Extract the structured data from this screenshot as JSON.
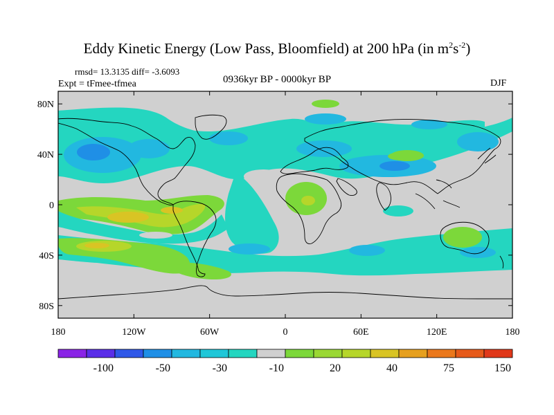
{
  "title": {
    "main": "Eddy Kinetic Energy (Low Pass, Bloomfield) at 200 hPa (in m",
    "sup1": "2",
    "mid": "s",
    "sup2": "-2",
    "end": ")"
  },
  "stats": "rmsd= 13.3135 diff= -3.6093",
  "expt": "Expt = tFmee-tfmea",
  "period": "0936kyr BP - 0000kyr BP",
  "season": "DJF",
  "axes": {
    "lat_ticks": [
      {
        "value": 80,
        "label": "80N"
      },
      {
        "value": 40,
        "label": "40N"
      },
      {
        "value": 0,
        "label": "0"
      },
      {
        "value": -40,
        "label": "40S"
      },
      {
        "value": -80,
        "label": "80S"
      }
    ],
    "lon_ticks": [
      {
        "value": -180,
        "label": "180"
      },
      {
        "value": -120,
        "label": "120W"
      },
      {
        "value": -60,
        "label": "60W"
      },
      {
        "value": 0,
        "label": "0"
      },
      {
        "value": 60,
        "label": "60E"
      },
      {
        "value": 120,
        "label": "120E"
      },
      {
        "value": 180,
        "label": "180"
      }
    ],
    "lon_range": [
      -180,
      180
    ],
    "lat_range": [
      -90,
      90
    ]
  },
  "colors": {
    "background": "#d0d0d0",
    "cyan": "#24d6c0",
    "light_blue": "#22b8e0",
    "blue": "#1f8fe6",
    "green": "#7cd83a",
    "yellow_green": "#b6d62a",
    "yellow": "#d9c424",
    "coastline": "#000000"
  },
  "colorbar": {
    "colors": [
      "#8a24e6",
      "#5a2ee8",
      "#2f58e8",
      "#1f8fe6",
      "#22b8e0",
      "#1fc7d8",
      "#24d6c0",
      "#d0d0d0",
      "#7cd83a",
      "#9ad834",
      "#b6d62a",
      "#d9c424",
      "#e6a01f",
      "#ea781c",
      "#e65a1a",
      "#e0381a"
    ],
    "labels": [
      {
        "after_box": 2,
        "text": "-100"
      },
      {
        "after_box": 4,
        "text": "-50"
      },
      {
        "after_box": 6,
        "text": "-30"
      },
      {
        "after_box": 8,
        "text": "-10"
      },
      {
        "after_box": 10,
        "text": "20"
      },
      {
        "after_box": 12,
        "text": "40"
      },
      {
        "after_box": 14,
        "text": "75"
      },
      {
        "after_box": 16,
        "text": "150"
      }
    ]
  }
}
